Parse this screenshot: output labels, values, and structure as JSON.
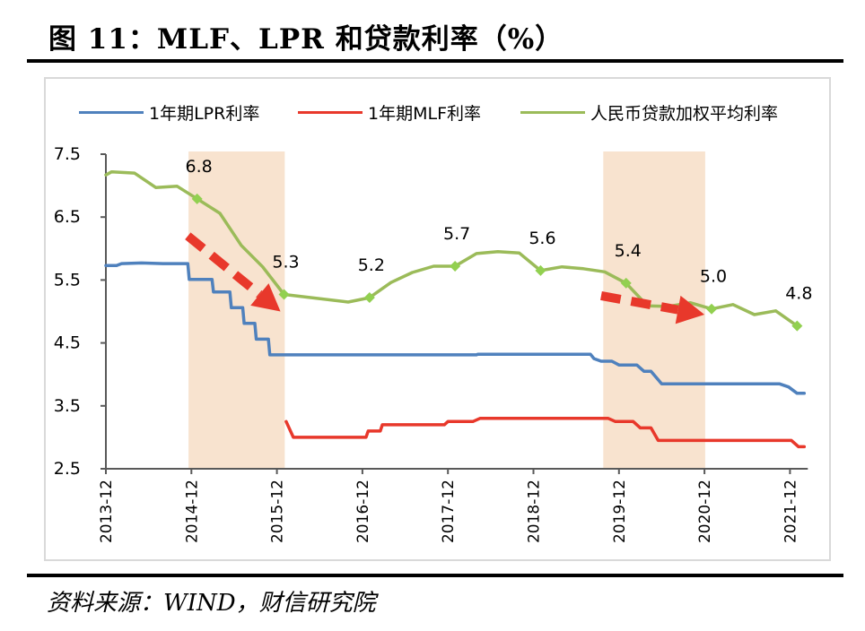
{
  "title": "图 11：MLF、LPR 和贷款利率（%）",
  "source": "资料来源：WIND，财信研究院",
  "chart_data": {
    "type": "line",
    "title": "图 11：MLF、LPR 和贷款利率（%）",
    "xlabel": "",
    "ylabel": "",
    "ylim": [
      2.5,
      7.5
    ],
    "yticks": [
      "7.5",
      "6.5",
      "5.5",
      "4.5",
      "3.5",
      "2.5"
    ],
    "ytick_values": [
      7.5,
      6.5,
      5.5,
      4.5,
      3.5,
      2.5
    ],
    "xlim_months": [
      0,
      98
    ],
    "xticks": [
      "2013-12",
      "2014-12",
      "2015-12",
      "2016-12",
      "2017-12",
      "2018-12",
      "2019-12",
      "2020-12",
      "2021-12"
    ],
    "xtick_months": [
      0,
      12,
      24,
      36,
      48,
      60,
      72,
      84,
      96
    ],
    "grid": false,
    "legend_position": "top",
    "shaded_periods": [
      {
        "start_month": 11.6,
        "end_month": 25.1,
        "color": "#F8E3CF"
      },
      {
        "start_month": 69.8,
        "end_month": 84.1,
        "color": "#F8E3CF"
      }
    ],
    "arrows": [
      {
        "from": [
          11.5,
          6.2
        ],
        "to": [
          24.5,
          5.0
        ],
        "color": "#E8382B",
        "style": "dashed"
      },
      {
        "from": [
          69.5,
          5.25
        ],
        "to": [
          84.0,
          4.95
        ],
        "color": "#E8382B",
        "style": "dashed"
      }
    ],
    "series": [
      {
        "name": "1年期LPR利率",
        "color": "#4F81BD",
        "step": true,
        "points": [
          [
            0,
            5.73
          ],
          [
            1.5,
            5.73
          ],
          [
            2.2,
            5.76
          ],
          [
            5,
            5.77
          ],
          [
            8,
            5.76
          ],
          [
            11.5,
            5.76
          ],
          [
            11.7,
            5.51
          ],
          [
            14.9,
            5.51
          ],
          [
            15.1,
            5.31
          ],
          [
            17.4,
            5.31
          ],
          [
            17.6,
            5.06
          ],
          [
            19.2,
            5.06
          ],
          [
            19.4,
            4.81
          ],
          [
            20.9,
            4.81
          ],
          [
            21.1,
            4.56
          ],
          [
            22.8,
            4.56
          ],
          [
            23.0,
            4.31
          ],
          [
            52,
            4.31
          ],
          [
            52.2,
            4.32
          ],
          [
            68,
            4.32
          ],
          [
            68.5,
            4.25
          ],
          [
            69.5,
            4.21
          ],
          [
            71,
            4.21
          ],
          [
            72,
            4.15
          ],
          [
            74.5,
            4.15
          ],
          [
            75.5,
            4.05
          ],
          [
            76.5,
            4.05
          ],
          [
            78,
            3.85
          ],
          [
            94.5,
            3.85
          ],
          [
            95.8,
            3.8
          ],
          [
            97,
            3.7
          ],
          [
            98,
            3.7
          ]
        ]
      },
      {
        "name": "1年期MLF利率",
        "color": "#E8382B",
        "step": true,
        "points": [
          [
            25.3,
            3.25
          ],
          [
            26.3,
            3.0
          ],
          [
            36.5,
            3.0
          ],
          [
            36.8,
            3.1
          ],
          [
            38.5,
            3.1
          ],
          [
            38.8,
            3.2
          ],
          [
            47.5,
            3.2
          ],
          [
            48,
            3.25
          ],
          [
            51.5,
            3.25
          ],
          [
            52.5,
            3.3
          ],
          [
            70.5,
            3.3
          ],
          [
            71.5,
            3.25
          ],
          [
            74,
            3.25
          ],
          [
            75,
            3.15
          ],
          [
            76.5,
            3.15
          ],
          [
            77.5,
            2.95
          ],
          [
            96.2,
            2.95
          ],
          [
            97.2,
            2.85
          ],
          [
            98,
            2.85
          ]
        ]
      },
      {
        "name": "人民币贷款加权平均利率",
        "color": "#9BBB59",
        "marker_color": "#92D050",
        "points": [
          [
            0,
            7.17
          ],
          [
            0.8,
            7.22
          ],
          [
            4,
            7.2
          ],
          [
            7,
            6.97
          ],
          [
            10,
            6.99
          ],
          [
            12.8,
            6.79
          ],
          [
            16,
            6.56
          ],
          [
            19,
            6.05
          ],
          [
            22,
            5.71
          ],
          [
            25,
            5.27
          ],
          [
            34,
            5.15
          ],
          [
            37,
            5.22
          ],
          [
            40,
            5.46
          ],
          [
            43,
            5.62
          ],
          [
            46,
            5.72
          ],
          [
            49,
            5.72
          ],
          [
            52,
            5.92
          ],
          [
            55,
            5.95
          ],
          [
            58,
            5.93
          ],
          [
            61,
            5.65
          ],
          [
            64,
            5.71
          ],
          [
            67,
            5.68
          ],
          [
            70,
            5.63
          ],
          [
            73,
            5.45
          ],
          [
            76,
            5.09
          ],
          [
            79,
            5.08
          ],
          [
            82,
            5.14
          ],
          [
            85,
            5.04
          ],
          [
            88,
            5.11
          ],
          [
            91,
            4.95
          ],
          [
            94,
            5.01
          ],
          [
            97,
            4.77
          ]
        ],
        "annotated": [
          {
            "month": 12.8,
            "value": 6.79,
            "label": "6.8"
          },
          {
            "month": 25,
            "value": 5.27,
            "label": "5.3"
          },
          {
            "month": 37,
            "value": 5.22,
            "label": "5.2"
          },
          {
            "month": 49,
            "value": 5.72,
            "label": "5.7"
          },
          {
            "month": 61,
            "value": 5.65,
            "label": "5.6"
          },
          {
            "month": 73,
            "value": 5.45,
            "label": "5.4"
          },
          {
            "month": 85,
            "value": 5.04,
            "label": "5.0"
          },
          {
            "month": 97,
            "value": 4.77,
            "label": "4.8"
          }
        ]
      }
    ]
  }
}
